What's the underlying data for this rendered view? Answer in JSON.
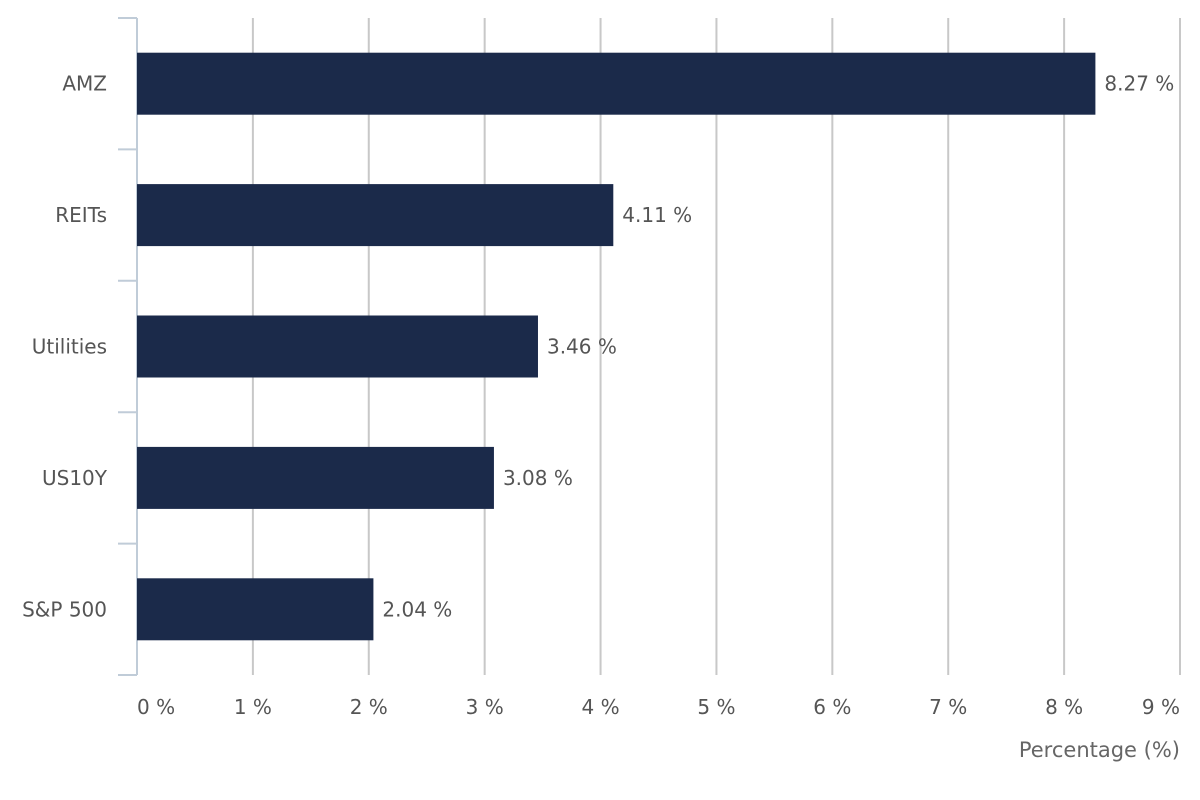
{
  "chart_data": {
    "type": "bar",
    "orientation": "horizontal",
    "categories": [
      "AMZ",
      "REITs",
      "Utilities",
      "US10Y",
      "S&P 500"
    ],
    "values": [
      8.27,
      4.11,
      3.46,
      3.08,
      2.04
    ],
    "data_labels": [
      "8.27 %",
      "4.11 %",
      "3.46 %",
      "3.08 %",
      "2.04 %"
    ],
    "xlabel": "Percentage (%)",
    "xlim": [
      0,
      9
    ],
    "x_ticks": [
      0,
      1,
      2,
      3,
      4,
      5,
      6,
      7,
      8,
      9
    ],
    "x_tick_labels": [
      "0 %",
      "1 %",
      "2 %",
      "3 %",
      "4 %",
      "5 %",
      "6 %",
      "7 %",
      "8 %",
      "9 %"
    ],
    "grid": true,
    "legend": "none",
    "bar_color": "#1b2a4a",
    "grid_color": "#c8c8c8",
    "axis_color": "#c0ccd8"
  }
}
